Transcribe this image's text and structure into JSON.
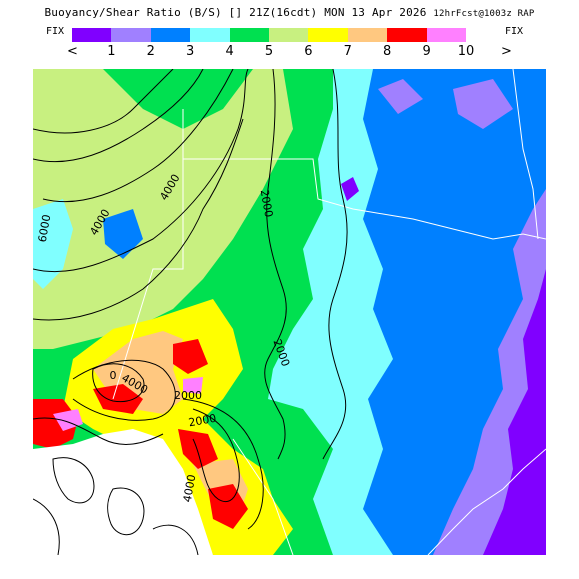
{
  "title": {
    "main": "Buoyancy/Shear Ratio (B/S) [] 21Z(16cdt) MON 13 Apr 2026",
    "run": "12hrFcst@1003z RAP"
  },
  "legend": {
    "left_label": "FIX",
    "right_label": "FIX",
    "left_arrow": "<",
    "right_arrow": ">",
    "bins": [
      {
        "color": "#8000ff"
      },
      {
        "color": "#a080ff"
      },
      {
        "color": "#0080ff"
      },
      {
        "color": "#80ffff"
      },
      {
        "color": "#00e050"
      },
      {
        "color": "#c8f080"
      },
      {
        "color": "#ffff00"
      },
      {
        "color": "#ffc880"
      },
      {
        "color": "#ff0000"
      },
      {
        "color": "#ff80ff"
      }
    ],
    "tick_labels": [
      "1",
      "2",
      "3",
      "4",
      "5",
      "6",
      "7",
      "8",
      "9",
      "10"
    ]
  },
  "contours": {
    "labels": [
      "6000",
      "4000",
      "4000",
      "2000",
      "2000",
      "2000",
      "4000",
      "4000",
      "2000",
      "0"
    ]
  },
  "colors": {
    "contour": "#000000",
    "boundary": "#ffffff"
  }
}
